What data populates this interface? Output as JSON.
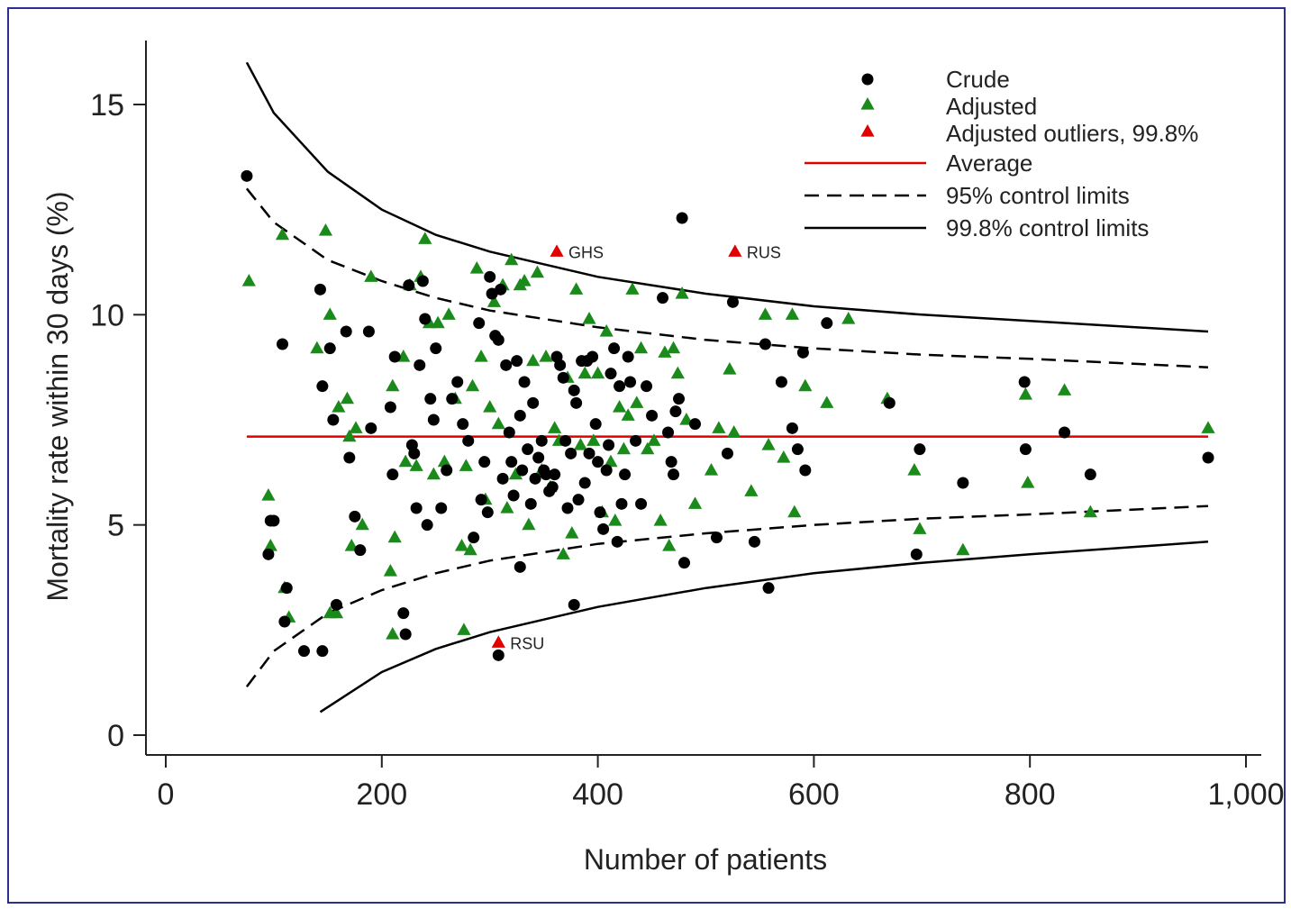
{
  "chart_data": {
    "type": "scatter",
    "title": "",
    "xlabel": "Number of patients",
    "ylabel": "Mortality rate within 30 days (%)",
    "xlim": [
      0,
      1000
    ],
    "ylim": [
      0,
      16
    ],
    "x_ticks": [
      0,
      200,
      400,
      600,
      800,
      1000
    ],
    "x_tick_labels": [
      "0",
      "200",
      "400",
      "600",
      "800",
      "1,000"
    ],
    "y_ticks": [
      0,
      5,
      10,
      15
    ],
    "y_tick_labels": [
      "0",
      "5",
      "10",
      "15"
    ],
    "grid": false,
    "legend_position": "top-right",
    "average": 7.1,
    "colors": {
      "crude": "#000000",
      "adjusted": "#1a8a1a",
      "outlier": "#e00000",
      "average": "#e00000",
      "limits": "#000000"
    },
    "legend": [
      {
        "label": "Crude",
        "marker": "circle",
        "color": "#000000"
      },
      {
        "label": "Adjusted",
        "marker": "triangle",
        "color": "#1a8a1a"
      },
      {
        "label": "Adjusted outliers, 99.8%",
        "marker": "triangle",
        "color": "#e00000"
      },
      {
        "label": "Average",
        "line": "solid",
        "color": "#e00000"
      },
      {
        "label": "95% control limits",
        "line": "dashed",
        "color": "#000000"
      },
      {
        "label": "99.8% control limits",
        "line": "solid",
        "color": "#000000"
      }
    ],
    "control_limits": {
      "upper_998": {
        "x": [
          75,
          100,
          150,
          200,
          250,
          300,
          400,
          500,
          600,
          700,
          800,
          965
        ],
        "y": [
          16.0,
          14.8,
          13.4,
          12.5,
          11.9,
          11.5,
          10.9,
          10.5,
          10.2,
          10.0,
          9.85,
          9.6
        ]
      },
      "upper_95": {
        "x": [
          75,
          100,
          150,
          200,
          250,
          300,
          400,
          500,
          600,
          700,
          800,
          965
        ],
        "y": [
          13.0,
          12.2,
          11.3,
          10.8,
          10.4,
          10.1,
          9.7,
          9.4,
          9.2,
          9.05,
          8.95,
          8.75
        ]
      },
      "lower_95": {
        "x": [
          75,
          100,
          150,
          200,
          250,
          300,
          400,
          500,
          600,
          700,
          800,
          965
        ],
        "y": [
          1.15,
          2.0,
          2.9,
          3.45,
          3.85,
          4.15,
          4.55,
          4.8,
          5.0,
          5.15,
          5.25,
          5.45
        ]
      },
      "lower_998": {
        "x": [
          143,
          200,
          250,
          300,
          400,
          500,
          600,
          700,
          800,
          965
        ],
        "y": [
          0.55,
          1.5,
          2.05,
          2.45,
          3.05,
          3.5,
          3.85,
          4.1,
          4.3,
          4.6
        ]
      }
    },
    "series": [
      {
        "name": "Crude",
        "x": [
          75,
          108,
          143,
          145,
          152,
          155,
          158,
          167,
          170,
          175,
          180,
          188,
          190,
          208,
          210,
          212,
          220,
          222,
          225,
          228,
          230,
          232,
          235,
          238,
          240,
          242,
          245,
          248,
          250,
          255,
          260,
          265,
          270,
          275,
          280,
          285,
          290,
          292,
          295,
          298,
          300,
          302,
          305,
          308,
          310,
          312,
          315,
          318,
          320,
          322,
          325,
          328,
          330,
          332,
          335,
          338,
          340,
          342,
          345,
          348,
          350,
          352,
          355,
          358,
          360,
          362,
          365,
          368,
          370,
          372,
          375,
          378,
          380,
          382,
          385,
          388,
          390,
          392,
          395,
          398,
          400,
          402,
          405,
          408,
          410,
          412,
          415,
          418,
          420,
          422,
          425,
          428,
          430,
          435,
          440,
          445,
          450,
          460,
          465,
          468,
          470,
          472,
          475,
          478,
          480,
          490,
          510,
          520,
          525,
          545,
          555,
          558,
          570,
          580,
          585,
          590,
          592,
          612,
          670,
          695,
          698,
          738,
          795,
          796,
          832,
          856,
          965,
          95,
          97,
          100,
          110,
          112,
          128,
          145,
          308,
          328,
          378
        ],
        "y": [
          13.3,
          9.3,
          10.6,
          8.3,
          9.2,
          7.5,
          3.1,
          9.6,
          6.6,
          5.2,
          4.4,
          9.6,
          7.3,
          7.8,
          6.2,
          9.0,
          2.9,
          2.4,
          10.7,
          6.9,
          6.7,
          5.4,
          8.8,
          10.8,
          9.9,
          5.0,
          8.0,
          7.5,
          9.2,
          5.4,
          6.3,
          8.0,
          8.4,
          7.4,
          7.0,
          4.7,
          9.8,
          5.6,
          6.5,
          5.3,
          10.9,
          10.5,
          9.5,
          9.4,
          10.6,
          6.1,
          8.8,
          7.2,
          6.5,
          5.7,
          8.9,
          7.6,
          6.3,
          8.4,
          6.8,
          5.5,
          7.9,
          6.1,
          6.6,
          7.0,
          6.3,
          6.2,
          5.8,
          5.9,
          6.2,
          9.0,
          8.8,
          8.5,
          7.0,
          5.4,
          6.7,
          8.2,
          7.9,
          5.6,
          8.9,
          6.0,
          8.9,
          6.7,
          9.0,
          7.4,
          6.5,
          5.3,
          4.9,
          6.3,
          6.9,
          8.6,
          9.2,
          4.6,
          8.3,
          5.5,
          6.2,
          9.0,
          8.4,
          7.0,
          5.5,
          8.3,
          7.6,
          10.4,
          7.2,
          6.5,
          6.2,
          7.7,
          8.0,
          12.3,
          4.1,
          7.4,
          4.7,
          6.7,
          10.3,
          4.6,
          9.3,
          3.5,
          8.4,
          7.3,
          6.8,
          9.1,
          6.3,
          9.8,
          7.9,
          4.3,
          6.8,
          6.0,
          8.4,
          6.8,
          7.2,
          6.2,
          6.6,
          4.3,
          5.1,
          5.1,
          2.7,
          3.5,
          2.0,
          2.0,
          1.9,
          4.0,
          3.1
        ]
      },
      {
        "name": "Adjusted",
        "x": [
          77,
          108,
          140,
          148,
          152,
          160,
          168,
          172,
          176,
          182,
          190,
          210,
          212,
          220,
          222,
          226,
          232,
          236,
          240,
          244,
          248,
          252,
          258,
          262,
          268,
          274,
          278,
          284,
          288,
          292,
          296,
          300,
          304,
          308,
          312,
          316,
          320,
          324,
          328,
          332,
          336,
          340,
          344,
          348,
          352,
          356,
          360,
          364,
          368,
          372,
          376,
          380,
          384,
          388,
          392,
          396,
          400,
          404,
          408,
          412,
          416,
          420,
          424,
          428,
          432,
          436,
          440,
          446,
          452,
          458,
          462,
          466,
          470,
          474,
          478,
          482,
          490,
          505,
          512,
          522,
          526,
          542,
          555,
          558,
          572,
          580,
          582,
          592,
          612,
          632,
          668,
          693,
          698,
          738,
          796,
          798,
          832,
          856,
          965,
          95,
          97,
          110,
          114,
          152,
          158,
          170,
          208,
          210,
          276,
          282
        ],
        "y": [
          10.8,
          11.9,
          9.2,
          12.0,
          10.0,
          7.8,
          8.0,
          4.5,
          7.3,
          5.0,
          10.9,
          8.3,
          4.7,
          9.0,
          6.5,
          10.7,
          6.4,
          10.9,
          11.8,
          9.8,
          6.2,
          9.8,
          6.5,
          10.0,
          8.0,
          4.5,
          6.4,
          8.3,
          11.1,
          9.0,
          5.6,
          7.8,
          10.3,
          7.4,
          10.7,
          5.4,
          11.3,
          6.2,
          10.7,
          10.8,
          5.0,
          8.9,
          11.0,
          6.3,
          9.0,
          5.9,
          7.3,
          7.0,
          4.3,
          8.5,
          4.8,
          10.6,
          6.9,
          8.6,
          9.9,
          7.0,
          8.6,
          5.3,
          9.6,
          6.5,
          5.1,
          7.8,
          6.8,
          7.6,
          10.6,
          7.9,
          9.2,
          6.8,
          7.0,
          5.1,
          9.1,
          4.5,
          9.2,
          8.6,
          10.5,
          7.5,
          5.5,
          6.3,
          7.3,
          8.7,
          7.2,
          5.8,
          10.0,
          6.9,
          6.6,
          10.0,
          5.3,
          8.3,
          7.9,
          9.9,
          8.0,
          6.3,
          4.9,
          4.4,
          8.1,
          6.0,
          8.2,
          5.3,
          7.3,
          5.7,
          4.5,
          3.5,
          2.8,
          2.9,
          2.9,
          7.1,
          3.9,
          2.4,
          2.5,
          4.4
        ]
      },
      {
        "name": "Adjusted outliers, 99.8%",
        "x": [
          362,
          527,
          308
        ],
        "y": [
          11.5,
          11.5,
          2.2
        ],
        "labels": [
          "GHS",
          "RUS",
          "RSU"
        ]
      }
    ]
  }
}
